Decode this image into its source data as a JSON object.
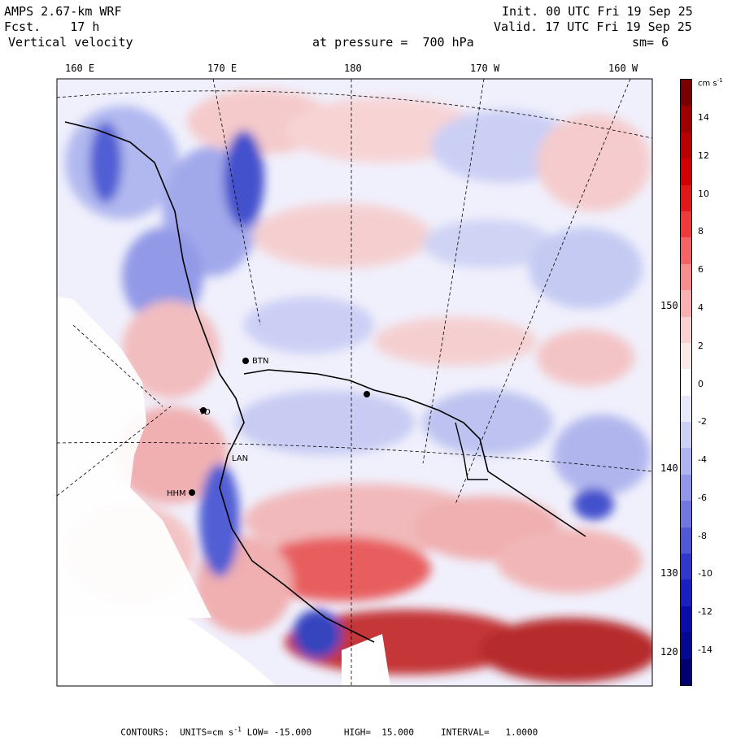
{
  "header": {
    "model": "AMPS 2.67-km WRF",
    "forecast": "Fcst.    17 h",
    "field": "Vertical velocity",
    "init": "Init. 00 UTC Fri 19 Sep 25",
    "valid": "Valid. 17 UTC Fri 19 Sep 25",
    "pressure": "at pressure =  700 hPa",
    "smoothing": "sm= 6"
  },
  "longitude_labels": [
    "160 E",
    "170 E",
    "180",
    "170 W",
    "160 W"
  ],
  "latitude_labels": [
    "150 W",
    "140 W",
    "130 W",
    "120 W"
  ],
  "station_labels": [
    "BTN",
    "TD",
    "LAN",
    "HHM"
  ],
  "colorbar": {
    "units": "cm s",
    "units_exp": "-1",
    "ticks": [
      "14",
      "12",
      "10",
      "8",
      "6",
      "4",
      "2",
      "0",
      "-2",
      "-4",
      "-6",
      "-8",
      "-10",
      "-12",
      "-14"
    ],
    "colors": [
      "#7a0000",
      "#9c0000",
      "#b80000",
      "#d00000",
      "#e01818",
      "#ee3a3a",
      "#f46464",
      "#f78e8e",
      "#f9b0b0",
      "#fbd0d0",
      "#fde8e8",
      "#ffffff",
      "#e6e8fb",
      "#ccd0f5",
      "#aeb4ef",
      "#9096e8",
      "#7078e0",
      "#5058d6",
      "#3038cc",
      "#1820c0",
      "#0a0ca8",
      "#050890",
      "#000070"
    ]
  },
  "colors": {
    "positive": "#e03030",
    "negative": "#3040d0",
    "neutral": "#ffffff"
  },
  "footer": {
    "contours": "CONTOURS:",
    "units_label": "UNITS=cm s",
    "units_exp": "-1",
    "low": "LOW= -15.000",
    "high": "HIGH=  15.000",
    "interval": "INTERVAL=   1.0000"
  }
}
